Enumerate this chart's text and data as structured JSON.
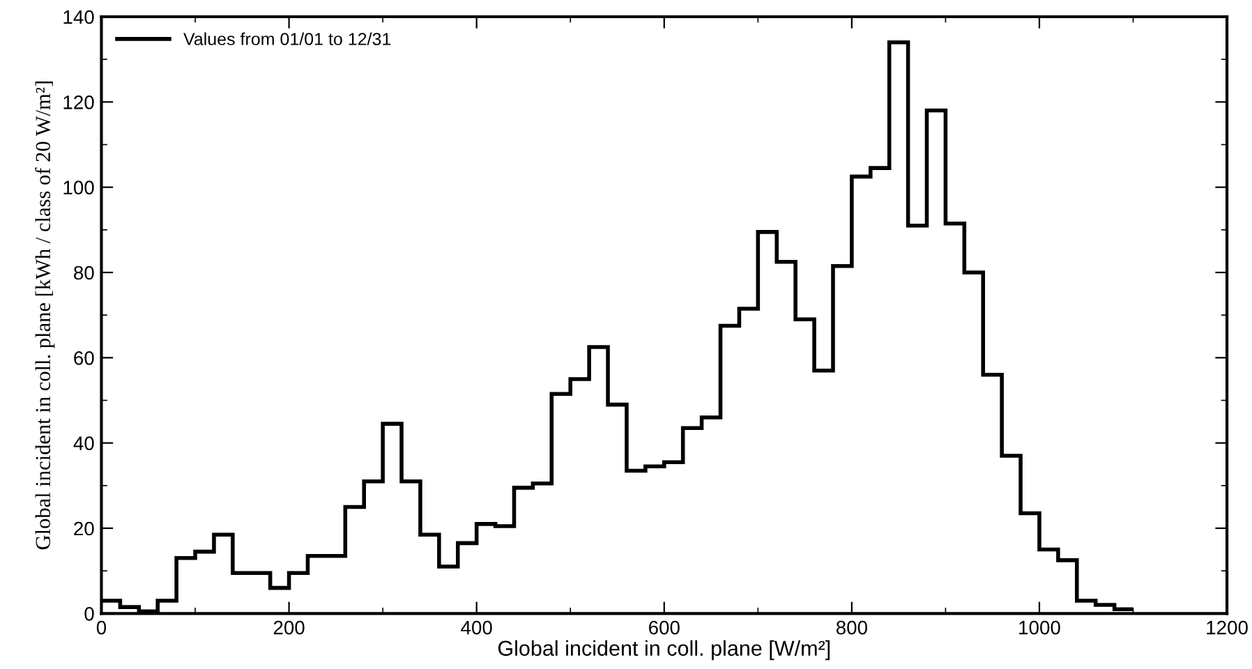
{
  "chart_data": {
    "type": "histogram",
    "xlabel": "Global incident in coll. plane [W/m²]",
    "ylabel": "Global incident in coll. plane [kWh / class of 20 W/m²]",
    "bins": [
      0,
      20,
      40,
      60,
      80,
      100,
      120,
      140,
      160,
      180,
      200,
      220,
      240,
      260,
      280,
      300,
      320,
      340,
      360,
      380,
      400,
      420,
      440,
      460,
      480,
      500,
      520,
      540,
      560,
      580,
      600,
      620,
      640,
      660,
      680,
      700,
      720,
      740,
      760,
      780,
      800,
      820,
      840,
      860,
      880,
      900,
      920,
      940,
      960,
      980,
      1000,
      1020,
      1040,
      1060,
      1080,
      1100
    ],
    "series": [
      {
        "name": "Values from 01/01 to 12/31",
        "color": "#000000",
        "values": [
          3,
          1.5,
          0.5,
          3,
          13,
          14.5,
          18.5,
          9.5,
          9.5,
          6,
          9.5,
          13.5,
          13.5,
          25,
          31,
          44.5,
          31,
          18.5,
          11,
          16.5,
          21,
          20.5,
          29.5,
          30.5,
          51.5,
          55,
          62.5,
          49,
          33.5,
          34.5,
          35.5,
          43.5,
          46,
          67.5,
          71.5,
          89.5,
          82.5,
          69,
          57,
          81.5,
          102.5,
          104.5,
          134,
          91,
          118,
          91.5,
          80,
          56,
          37,
          23.5,
          15,
          12.5,
          3,
          2,
          1
        ]
      }
    ],
    "xlim": [
      0,
      1200
    ],
    "xticks": [
      0,
      200,
      400,
      600,
      800,
      1000,
      1200
    ],
    "ylim": [
      0,
      140
    ],
    "yticks": [
      0,
      20,
      40,
      60,
      80,
      100,
      120,
      140
    ],
    "legend": "top left",
    "grid": false
  }
}
